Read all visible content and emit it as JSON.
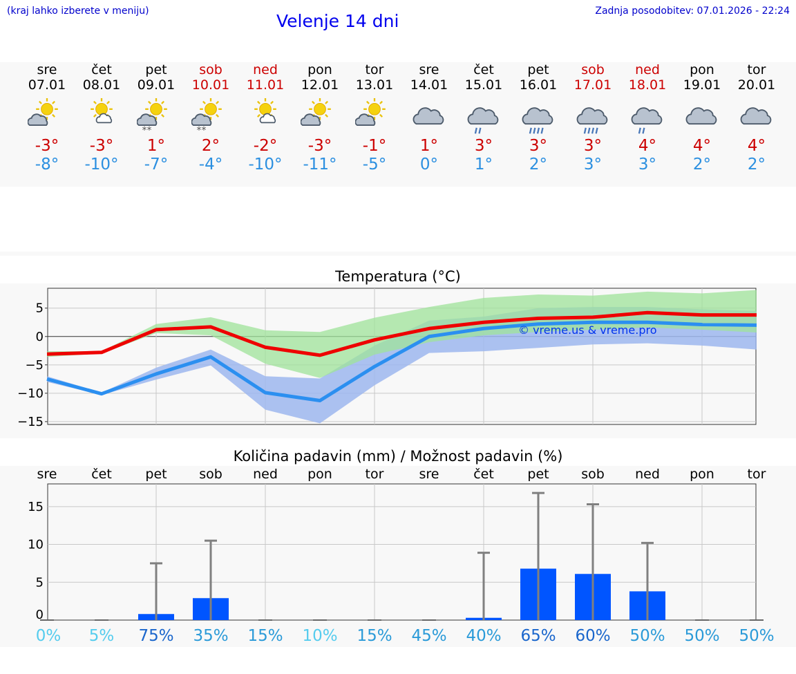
{
  "header": {
    "hint": "(kraj lahko izberete v meniju)",
    "title": "Velenje 14 dni",
    "updated": "Zadnja posodobitev: 07.01.2026 - 22:24"
  },
  "days": [
    {
      "name": "sre",
      "date": "07.01",
      "weekend": false,
      "icon": "sun-cloud-icon",
      "tmax": "-3°",
      "tmin": "-8°"
    },
    {
      "name": "čet",
      "date": "08.01",
      "weekend": false,
      "icon": "sun-small-cloud-icon",
      "tmax": "-3°",
      "tmin": "-10°"
    },
    {
      "name": "pet",
      "date": "09.01",
      "weekend": false,
      "icon": "sun-cloud-snow-icon",
      "tmax": "1°",
      "tmin": "-7°"
    },
    {
      "name": "sob",
      "date": "10.01",
      "weekend": true,
      "icon": "sun-cloud-snow-icon",
      "tmax": "2°",
      "tmin": "-4°"
    },
    {
      "name": "ned",
      "date": "11.01",
      "weekend": true,
      "icon": "sun-small-cloud-icon",
      "tmax": "-2°",
      "tmin": "-10°"
    },
    {
      "name": "pon",
      "date": "12.01",
      "weekend": false,
      "icon": "sun-cloud-icon",
      "tmax": "-3°",
      "tmin": "-11°"
    },
    {
      "name": "tor",
      "date": "13.01",
      "weekend": false,
      "icon": "sun-cloud-icon",
      "tmax": "-1°",
      "tmin": "-5°"
    },
    {
      "name": "sre",
      "date": "14.01",
      "weekend": false,
      "icon": "cloud-icon",
      "tmax": "1°",
      "tmin": "0°"
    },
    {
      "name": "čet",
      "date": "15.01",
      "weekend": false,
      "icon": "cloud-rain-light-icon",
      "tmax": "3°",
      "tmin": "1°"
    },
    {
      "name": "pet",
      "date": "16.01",
      "weekend": false,
      "icon": "cloud-rain-icon",
      "tmax": "3°",
      "tmin": "2°"
    },
    {
      "name": "sob",
      "date": "17.01",
      "weekend": true,
      "icon": "cloud-rain-icon",
      "tmax": "3°",
      "tmin": "3°"
    },
    {
      "name": "ned",
      "date": "18.01",
      "weekend": true,
      "icon": "cloud-rain-light-icon",
      "tmax": "4°",
      "tmin": "3°"
    },
    {
      "name": "pon",
      "date": "19.01",
      "weekend": false,
      "icon": "cloud-icon",
      "tmax": "4°",
      "tmin": "2°"
    },
    {
      "name": "tor",
      "date": "20.01",
      "weekend": false,
      "icon": "cloud-icon",
      "tmax": "4°",
      "tmin": "2°"
    }
  ],
  "colors": {
    "max_line": "#ee0000",
    "min_line": "#2b8ff0",
    "max_band": "#9fe39a",
    "min_band": "#9db7ef",
    "bar": "#0055ff",
    "whisker": "#808080",
    "weekend_text": "#cc0000",
    "link": "#0000cc"
  },
  "watermark": "© vreme.us & vreme.pro",
  "chart_data": [
    {
      "type": "line",
      "title": "Temperatura (°C)",
      "x": [
        "07.01",
        "08.01",
        "09.01",
        "10.01",
        "11.01",
        "12.01",
        "13.01",
        "14.01",
        "15.01",
        "16.01",
        "17.01",
        "18.01",
        "19.01",
        "20.01"
      ],
      "ylim": [
        -15.5,
        8.5
      ],
      "yticks": [
        5,
        0,
        -5,
        -10,
        -15
      ],
      "ytick_labels": [
        "5",
        "0",
        "−5",
        "−10",
        "−15"
      ],
      "series": [
        {
          "name": "max",
          "values": [
            -3.1,
            -2.8,
            1.2,
            1.7,
            -1.9,
            -3.3,
            -0.6,
            1.4,
            2.5,
            3.2,
            3.4,
            4.2,
            3.8,
            3.8
          ],
          "band_low": [
            -3.6,
            -3.0,
            0.6,
            0.2,
            -4.8,
            -7.3,
            -3.2,
            -1.0,
            0.2,
            0.8,
            1.2,
            1.6,
            1.2,
            0.7
          ],
          "band_high": [
            -2.6,
            -2.6,
            2.2,
            3.4,
            1.1,
            0.8,
            3.3,
            5.2,
            6.8,
            7.4,
            7.2,
            7.9,
            7.6,
            8.2
          ]
        },
        {
          "name": "min",
          "values": [
            -7.5,
            -10.1,
            -6.6,
            -3.6,
            -9.9,
            -11.3,
            -5.3,
            0.0,
            1.4,
            2.2,
            2.5,
            2.5,
            2.1,
            2.0
          ],
          "band_low": [
            -8.0,
            -10.3,
            -7.6,
            -5.1,
            -12.9,
            -15.3,
            -8.6,
            -2.9,
            -2.6,
            -2.0,
            -1.4,
            -1.2,
            -1.6,
            -2.3
          ],
          "band_high": [
            -7.0,
            -9.9,
            -5.5,
            -2.3,
            -7.0,
            -7.4,
            -1.6,
            2.8,
            3.5,
            5.0,
            5.2,
            5.2,
            4.8,
            4.5
          ]
        }
      ]
    },
    {
      "type": "bar",
      "title": "Količina padavin (mm) / Možnost padavin (%)",
      "categories": [
        "sre",
        "čet",
        "pet",
        "sob",
        "ned",
        "pon",
        "tor",
        "sre",
        "čet",
        "pet",
        "sob",
        "ned",
        "pon",
        "tor"
      ],
      "ylim": [
        0,
        18
      ],
      "yticks": [
        0,
        5,
        10,
        15
      ],
      "values": [
        0,
        0,
        0.8,
        2.9,
        0,
        0,
        0,
        0,
        0.3,
        6.8,
        6.1,
        3.8,
        0,
        0
      ],
      "whisker_high": [
        0,
        0,
        7.5,
        10.5,
        0,
        0,
        0,
        0,
        8.9,
        16.8,
        15.3,
        10.2,
        0,
        0
      ],
      "probability": [
        "0%",
        "5%",
        "75%",
        "35%",
        "15%",
        "10%",
        "15%",
        "45%",
        "40%",
        "65%",
        "60%",
        "50%",
        "50%",
        "50%"
      ],
      "probability_colors": [
        "#55ccee",
        "#55ccee",
        "#1a66cc",
        "#2a9ad8",
        "#2a9ad8",
        "#55ccee",
        "#2a9ad8",
        "#2a9ad8",
        "#2a9ad8",
        "#1a66cc",
        "#1a66cc",
        "#2a9ad8",
        "#2a9ad8",
        "#2a9ad8"
      ]
    }
  ]
}
